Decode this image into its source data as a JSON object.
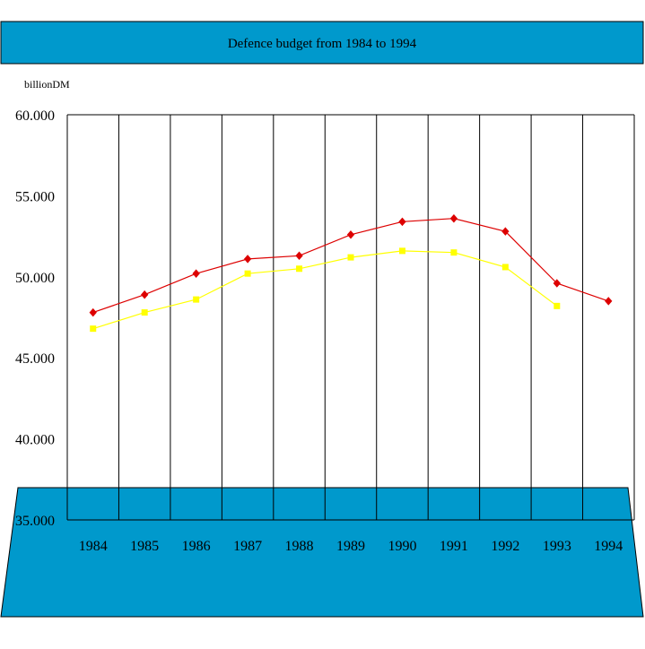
{
  "chart_data": {
    "type": "line",
    "title": "Defence budget from 1984 to 1994",
    "ylabel": "billionDM",
    "xlabel": "",
    "categories": [
      "1984",
      "1985",
      "1986",
      "1987",
      "1988",
      "1989",
      "1990",
      "1991",
      "1992",
      "1993",
      "1994"
    ],
    "ylim": [
      35,
      60
    ],
    "yticks": [
      60,
      55,
      50,
      45,
      40,
      35
    ],
    "ytick_labels": [
      "60.000",
      "55.000",
      "50.000",
      "45.000",
      "40.000",
      "35.000"
    ],
    "grid": "vertical",
    "series": [
      {
        "color": "#dd0000",
        "marker": "diamond",
        "values": [
          47.8,
          48.9,
          50.2,
          51.1,
          51.3,
          52.6,
          53.4,
          53.6,
          52.8,
          49.6,
          48.5
        ]
      },
      {
        "color": "#ffff00",
        "marker": "square",
        "values": [
          46.8,
          47.8,
          48.6,
          50.2,
          50.5,
          51.2,
          51.6,
          51.5,
          50.6,
          48.2,
          null
        ]
      }
    ],
    "colors": {
      "panel": "#0099cc",
      "outline": "#000000"
    }
  }
}
